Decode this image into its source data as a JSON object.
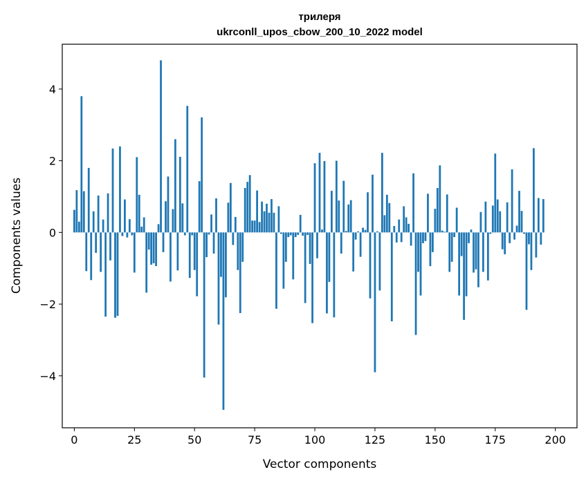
{
  "chart_data": {
    "type": "bar",
    "title": "трилеря",
    "subtitle": "ukrconll_upos_cbow_200_10_2022 model",
    "xlabel": "Vector components",
    "ylabel": "Components values",
    "xlim": [
      -5,
      209
    ],
    "ylim": [
      -5.45,
      5.25
    ],
    "xticks": [
      0,
      25,
      50,
      75,
      100,
      125,
      150,
      175,
      200
    ],
    "xtick_labels": [
      "0",
      "25",
      "50",
      "75",
      "100",
      "125",
      "150",
      "175",
      "200"
    ],
    "yticks": [
      -4,
      -2,
      0,
      2,
      4
    ],
    "ytick_labels": [
      "−4",
      "−2",
      "0",
      "2",
      "4"
    ],
    "grid": false,
    "bar_color": "#1f77b4",
    "values": [
      0.63,
      1.18,
      0.3,
      3.8,
      1.15,
      -1.08,
      1.8,
      -1.33,
      0.59,
      -0.57,
      1.03,
      -1.1,
      0.36,
      -2.35,
      1.09,
      -0.78,
      2.34,
      -2.38,
      -2.33,
      2.4,
      -0.1,
      0.92,
      -0.14,
      0.37,
      -0.08,
      -1.12,
      2.1,
      1.05,
      0.16,
      0.42,
      -1.68,
      -0.48,
      -0.9,
      -0.86,
      -0.94,
      0.23,
      4.8,
      -0.55,
      0.87,
      1.56,
      -1.37,
      0.65,
      2.6,
      -1.06,
      2.11,
      0.81,
      -0.08,
      3.53,
      -1.27,
      -0.08,
      -1.05,
      -1.78,
      1.43,
      3.21,
      -4.05,
      -0.69,
      -0.06,
      0.5,
      -0.59,
      0.95,
      -2.57,
      -1.24,
      -4.95,
      -1.81,
      0.83,
      1.38,
      -0.35,
      0.43,
      -1.05,
      -2.25,
      -0.82,
      1.24,
      1.41,
      1.6,
      0.33,
      0.33,
      1.17,
      0.29,
      0.86,
      0.59,
      0.8,
      0.55,
      0.93,
      0.55,
      -2.13,
      0.73,
      -0.04,
      -1.57,
      -0.82,
      -0.13,
      -0.08,
      -1.31,
      -0.13,
      -0.07,
      0.49,
      -0.09,
      -1.97,
      -0.07,
      -0.88,
      -2.53,
      1.93,
      -0.72,
      2.22,
      0.08,
      1.99,
      -2.26,
      -1.38,
      1.16,
      -2.37,
      2.0,
      0.89,
      -0.59,
      1.44,
      0.04,
      0.78,
      0.9,
      -1.09,
      -0.2,
      0.03,
      -0.68,
      0.13,
      0.07,
      1.12,
      -1.84,
      1.61,
      -3.9,
      0.03,
      -1.62,
      2.22,
      0.48,
      1.05,
      0.82,
      -2.48,
      0.18,
      -0.28,
      0.36,
      -0.27,
      0.73,
      0.42,
      0.24,
      -0.37,
      1.65,
      -2.86,
      -1.1,
      -1.76,
      -0.3,
      -0.24,
      1.08,
      -0.94,
      -0.55,
      0.66,
      1.24,
      1.87,
      0.05,
      0.02,
      1.06,
      -1.1,
      -0.82,
      -0.13,
      0.69,
      -1.76,
      -0.66,
      -2.44,
      -1.78,
      -0.3,
      0.08,
      -1.12,
      -1.03,
      -1.53,
      0.57,
      -1.1,
      0.86,
      -1.34,
      -0.04,
      0.75,
      2.2,
      0.92,
      0.59,
      -0.47,
      -0.61,
      0.84,
      -0.3,
      1.76,
      -0.2,
      0.19,
      1.16,
      0.6,
      -0.04,
      -2.16,
      -0.33,
      -1.05,
      2.35,
      -0.7,
      0.96,
      -0.34,
      0.93
    ]
  }
}
